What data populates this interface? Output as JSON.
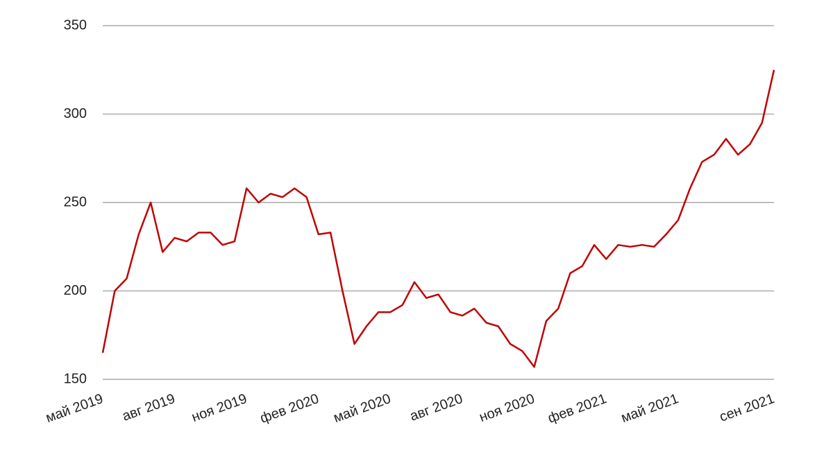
{
  "chart_data": {
    "type": "line",
    "categories": [
      "май 2019",
      null,
      null,
      null,
      null,
      null,
      "авг 2019",
      null,
      null,
      null,
      null,
      null,
      "ноя 2019",
      null,
      null,
      null,
      null,
      null,
      "фев 2020",
      null,
      null,
      null,
      null,
      null,
      "май 2020",
      null,
      null,
      null,
      null,
      null,
      "авг 2020",
      null,
      null,
      null,
      null,
      null,
      "ноя 2020",
      null,
      null,
      null,
      null,
      null,
      "фев 2021",
      null,
      null,
      null,
      null,
      null,
      "май 2021",
      null,
      null,
      null,
      null,
      null,
      null,
      null,
      "сен 2021"
    ],
    "series": [
      {
        "color": "#c00000",
        "values": [
          165,
          200,
          207,
          232,
          250,
          222,
          230,
          228,
          233,
          233,
          226,
          228,
          258,
          250,
          255,
          253,
          258,
          253,
          232,
          233,
          200,
          170,
          180,
          188,
          188,
          192,
          205,
          196,
          198,
          188,
          186,
          190,
          182,
          180,
          170,
          166,
          157,
          183,
          190,
          210,
          214,
          226,
          218,
          226,
          225,
          226,
          225,
          232,
          240,
          258,
          273,
          277,
          286,
          277,
          283,
          295,
          325
        ]
      }
    ],
    "ylim": [
      150,
      350
    ],
    "yticks": [
      150,
      200,
      250,
      300,
      350
    ],
    "grid": true
  }
}
